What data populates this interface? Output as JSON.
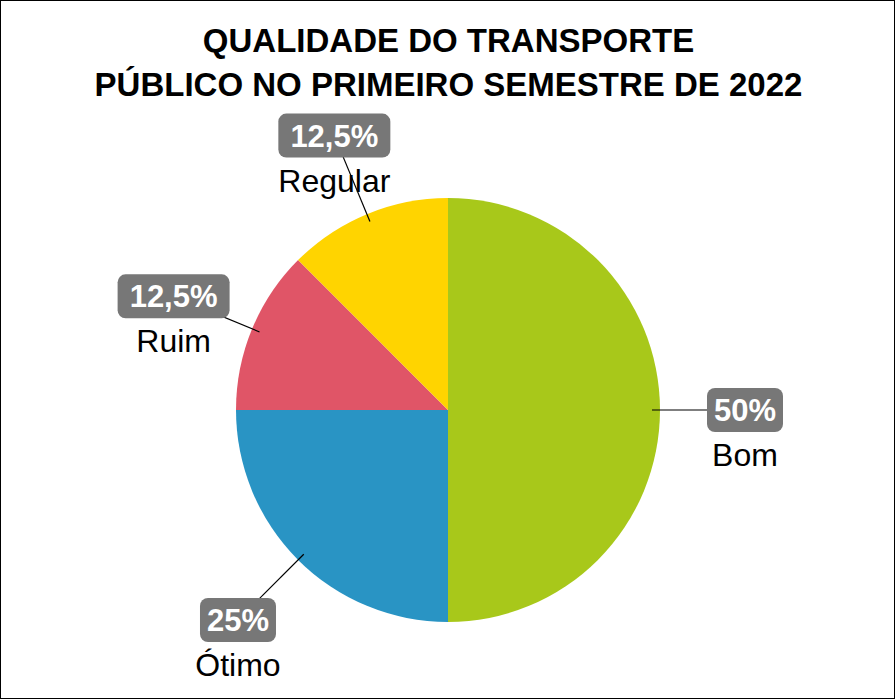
{
  "chart_data": {
    "type": "pie",
    "title": "QUALIDADE DO TRANSPORTE\nPÚBLICO NO PRIMEIRO SEMESTRE DE 2022",
    "categories": [
      "Bom",
      "Ótimo",
      "Ruim",
      "Regular"
    ],
    "values": [
      50,
      25,
      12.5,
      12.5
    ],
    "value_labels": [
      "50%",
      "25%",
      "12,5%",
      "12,5%"
    ],
    "colors": [
      "#a8c81a",
      "#2994c4",
      "#e05567",
      "#ffd400"
    ],
    "data_labels": true
  }
}
